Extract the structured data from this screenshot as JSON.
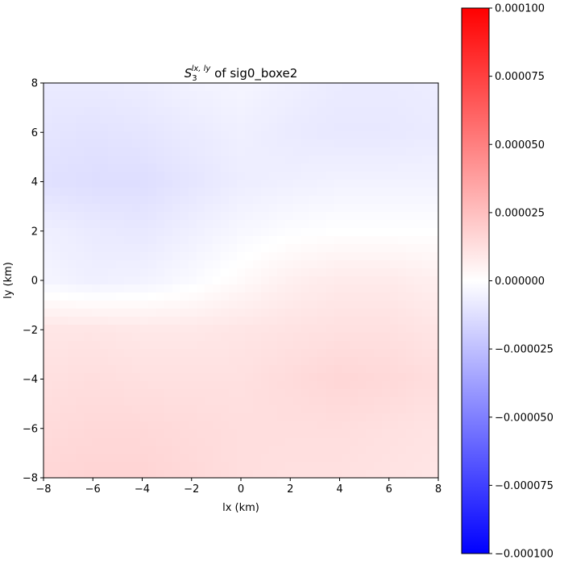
{
  "chart_data": {
    "type": "heatmap",
    "title": {
      "symbol": "S",
      "subscript": "3",
      "superscript": "lx, ly",
      "suffix": " of sig0_boxe2"
    },
    "xlabel": "lx (km)",
    "ylabel": "ly (km)",
    "xlim": [
      -8,
      8
    ],
    "ylim": [
      -8,
      8
    ],
    "xticks": [
      -8,
      -6,
      -4,
      -2,
      0,
      2,
      4,
      6,
      8
    ],
    "yticks": [
      -8,
      -6,
      -4,
      -2,
      0,
      2,
      4,
      6,
      8
    ],
    "xtick_labels": [
      "−8",
      "−6",
      "−4",
      "−2",
      "0",
      "2",
      "4",
      "6",
      "8"
    ],
    "ytick_labels": [
      "−8",
      "−6",
      "−4",
      "−2",
      "0",
      "2",
      "4",
      "6",
      "8"
    ],
    "colormap": "bwr",
    "colormap_colors": [
      "#0000ff",
      "#ffffff",
      "#ff0000"
    ],
    "vmin": -0.0001,
    "vmax": 0.0001,
    "colorbar_ticks": [
      -0.0001,
      -7.5e-05,
      -5e-05,
      -2.5e-05,
      0,
      2.5e-05,
      5e-05,
      7.5e-05,
      0.0001
    ],
    "colorbar_tick_labels": [
      "−0.000100",
      "−0.000075",
      "−0.000050",
      "−0.000025",
      "0.000000",
      "0.000025",
      "0.000050",
      "0.000075",
      "0.000100"
    ],
    "grid": false,
    "field_x": [
      -8,
      -6,
      -4,
      -2,
      0,
      2,
      4,
      6,
      8
    ],
    "field_y": [
      8,
      6,
      4,
      2,
      0,
      -2,
      -4,
      -6,
      -8
    ],
    "field_values": [
      [
        -8e-06,
        -8e-06,
        -7e-06,
        -5e-06,
        -4e-06,
        -6e-06,
        -8e-06,
        -8e-06,
        -7e-06
      ],
      [
        -1e-05,
        -1.1e-05,
        -1e-05,
        -8e-06,
        -6e-06,
        -8e-06,
        -9e-06,
        -9e-06,
        -8e-06
      ],
      [
        -1.2e-05,
        -1.3e-05,
        -1.3e-05,
        -1e-05,
        -7e-06,
        -6e-06,
        -5e-06,
        -5e-06,
        -5e-06
      ],
      [
        -6e-06,
        -8e-06,
        -9e-06,
        -6e-06,
        -3e-06,
        -1e-06,
        0.0,
        0.0,
        0.0
      ],
      [
        -4e-06,
        -6e-06,
        -5e-06,
        -2e-06,
        2e-06,
        6e-06,
        8e-06,
        8e-06,
        6e-06
      ],
      [
        1e-05,
        1e-05,
        9e-06,
        9e-06,
        1e-05,
        1.1e-05,
        1.2e-05,
        1.2e-05,
        1e-05
      ],
      [
        1.2e-05,
        1.3e-05,
        1.2e-05,
        1.2e-05,
        1.2e-05,
        1.4e-05,
        1.6e-05,
        1.5e-05,
        1.3e-05
      ],
      [
        1.4e-05,
        1.5e-05,
        1.5e-05,
        1.4e-05,
        1.3e-05,
        1.3e-05,
        1.3e-05,
        1.2e-05,
        1.1e-05
      ],
      [
        1.6e-05,
        1.7e-05,
        1.7e-05,
        1.5e-05,
        1.3e-05,
        1.2e-05,
        1.2e-05,
        1.1e-05,
        1e-05
      ]
    ]
  }
}
